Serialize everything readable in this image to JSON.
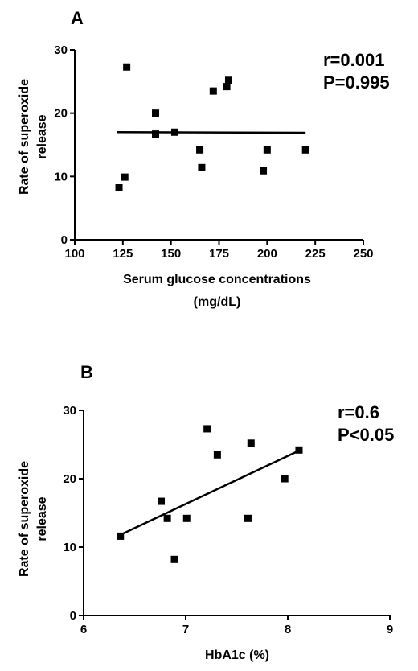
{
  "chart_data": [
    {
      "type": "scatter",
      "panel_label": "A",
      "xlabel": [
        "Serum glucose concentrations",
        "(mg/dL)"
      ],
      "ylabel": [
        "Rate of superoxide",
        "release"
      ],
      "xlim": [
        100,
        250
      ],
      "ylim": [
        0,
        30
      ],
      "xticks": [
        "100",
        "125",
        "150",
        "175",
        "200",
        "225",
        "250"
      ],
      "yticks": [
        "0",
        "10",
        "20",
        "30"
      ],
      "points": [
        {
          "x": 123,
          "y": 8.2
        },
        {
          "x": 126,
          "y": 9.9
        },
        {
          "x": 127,
          "y": 27.3
        },
        {
          "x": 142,
          "y": 16.7
        },
        {
          "x": 142,
          "y": 20.0
        },
        {
          "x": 152,
          "y": 17.0
        },
        {
          "x": 165,
          "y": 14.2
        },
        {
          "x": 166,
          "y": 11.4
        },
        {
          "x": 172,
          "y": 23.5
        },
        {
          "x": 179,
          "y": 24.2
        },
        {
          "x": 180,
          "y": 25.2
        },
        {
          "x": 198,
          "y": 10.9
        },
        {
          "x": 200,
          "y": 14.2
        },
        {
          "x": 220,
          "y": 14.2
        }
      ],
      "fit_line": {
        "x": [
          122,
          220
        ],
        "y": [
          17.0,
          16.9
        ]
      },
      "annotations": [
        "r=0.001",
        "P=0.995"
      ],
      "grid": false
    },
    {
      "type": "scatter",
      "panel_label": "B",
      "xlabel": [
        "HbA1c  (%)"
      ],
      "ylabel": [
        "Rate of superoxide",
        "release"
      ],
      "xlim": [
        6,
        9
      ],
      "ylim": [
        0,
        30
      ],
      "xticks": [
        "6",
        "7",
        "8",
        "9"
      ],
      "yticks": [
        "0",
        "10",
        "20",
        "30"
      ],
      "points": [
        {
          "x": 6.36,
          "y": 11.6
        },
        {
          "x": 6.76,
          "y": 16.7
        },
        {
          "x": 6.82,
          "y": 14.2
        },
        {
          "x": 6.89,
          "y": 8.2
        },
        {
          "x": 7.01,
          "y": 14.2
        },
        {
          "x": 7.21,
          "y": 27.3
        },
        {
          "x": 7.31,
          "y": 23.5
        },
        {
          "x": 7.61,
          "y": 14.2
        },
        {
          "x": 7.64,
          "y": 25.2
        },
        {
          "x": 7.97,
          "y": 20.0
        },
        {
          "x": 8.11,
          "y": 24.2
        }
      ],
      "fit_line": {
        "x": [
          6.36,
          8.11
        ],
        "y": [
          11.8,
          24.1
        ]
      },
      "annotations": [
        "r=0.6",
        "P<0.05"
      ],
      "grid": false
    }
  ]
}
